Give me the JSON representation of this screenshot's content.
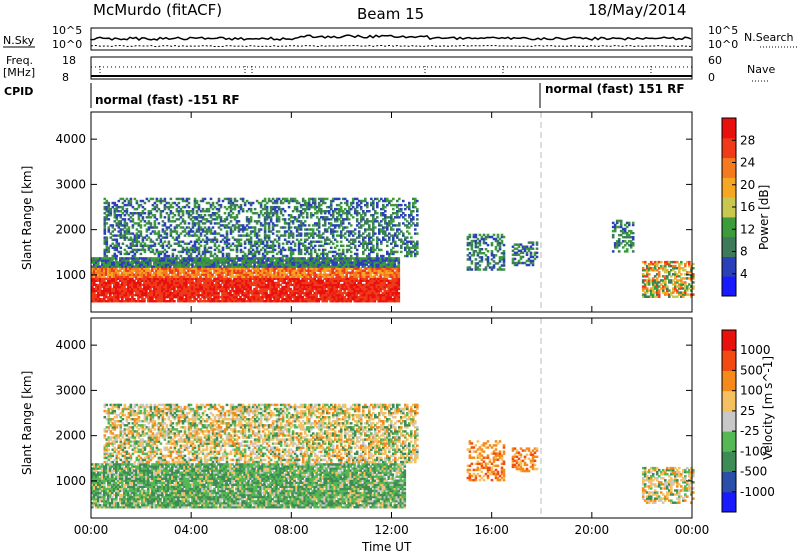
{
  "header": {
    "station": "McMurdo (fitACF)",
    "beam": "Beam 15",
    "date": "18/May/2014"
  },
  "status_panel": {
    "nsky_label": "N.Sky",
    "nsky_top": "10^5",
    "nsky_bottom": "10^0",
    "nsearch_label": "N.Search",
    "nsearch_top": "10^5",
    "nsearch_bottom": "10^0",
    "freq_label": "Freq.",
    "freq_unit": "[MHz]",
    "freq_top": "18",
    "freq_bottom": "8",
    "nave_label": "Nave",
    "nave_top": "60",
    "nave_bottom": "0",
    "cpid_label": "CPID",
    "cpid_left": "normal (fast) -151 RF",
    "cpid_right": "normal (fast) 151 RF"
  },
  "colors": {
    "power": [
      "#1a1aff",
      "#2a3fb8",
      "#3d7a5a",
      "#3c9c3c",
      "#c8c850",
      "#f5a623",
      "#f47a1f",
      "#ef3b1a",
      "#e8110e"
    ],
    "velocity": [
      "#e8110e",
      "#f24a12",
      "#f58a1a",
      "#f5c060",
      "#c8c8c8",
      "#55b855",
      "#3e8c55",
      "#2a4fa8",
      "#1a1aff"
    ]
  },
  "chart_data": [
    {
      "type": "heatmap",
      "title": "",
      "xlabel": "Time UT",
      "ylabel": "Slant Range [km]",
      "x_ticks": [
        "00:00",
        "04:00",
        "08:00",
        "12:00",
        "16:00",
        "20:00",
        "00:00"
      ],
      "y_ticks": [
        "1000",
        "2000",
        "3000",
        "4000"
      ],
      "xlim_hours": [
        0,
        24
      ],
      "ylim_km": [
        180,
        4600
      ],
      "colorbar_label": "Power [dB]",
      "colorbar_ticks": [
        "28",
        "24",
        "20",
        "16",
        "12",
        "8",
        "4"
      ],
      "echo_regions": [
        {
          "t_start": 0.0,
          "t_end": 12.3,
          "r_min": 400,
          "r_max": 1350,
          "level": "high"
        },
        {
          "t_start": 0.5,
          "t_end": 13.0,
          "r_min": 1400,
          "r_max": 2700,
          "level": "low"
        },
        {
          "t_start": 15.0,
          "t_end": 16.5,
          "r_min": 1100,
          "r_max": 1900,
          "level": "low"
        },
        {
          "t_start": 16.8,
          "t_end": 17.8,
          "r_min": 1200,
          "r_max": 1700,
          "level": "low"
        },
        {
          "t_start": 20.8,
          "t_end": 21.6,
          "r_min": 1500,
          "r_max": 2200,
          "level": "low"
        },
        {
          "t_start": 22.0,
          "t_end": 24.0,
          "r_min": 500,
          "r_max": 1300,
          "level": "mid"
        }
      ]
    },
    {
      "type": "heatmap",
      "title": "",
      "xlabel": "Time UT",
      "ylabel": "Slant Range [km]",
      "x_ticks": [
        "00:00",
        "04:00",
        "08:00",
        "12:00",
        "16:00",
        "20:00",
        "00:00"
      ],
      "y_ticks": [
        "1000",
        "2000",
        "3000",
        "4000"
      ],
      "xlim_hours": [
        0,
        24
      ],
      "ylim_km": [
        180,
        4600
      ],
      "colorbar_label": "Velocity [m s^-1]",
      "colorbar_ticks": [
        "1000",
        "500",
        "100",
        "25",
        "-25",
        "-100",
        "-500",
        "-1000"
      ],
      "echo_regions": [
        {
          "t_start": 0.0,
          "t_end": 12.5,
          "r_min": 400,
          "r_max": 1350,
          "level": "green"
        },
        {
          "t_start": 0.5,
          "t_end": 13.0,
          "r_min": 1400,
          "r_max": 2700,
          "level": "mixed"
        },
        {
          "t_start": 15.0,
          "t_end": 16.5,
          "r_min": 1000,
          "r_max": 1900,
          "level": "orange"
        },
        {
          "t_start": 16.8,
          "t_end": 17.8,
          "r_min": 1200,
          "r_max": 1700,
          "level": "orange"
        },
        {
          "t_start": 22.0,
          "t_end": 24.0,
          "r_min": 500,
          "r_max": 1300,
          "level": "mixed"
        }
      ]
    }
  ]
}
